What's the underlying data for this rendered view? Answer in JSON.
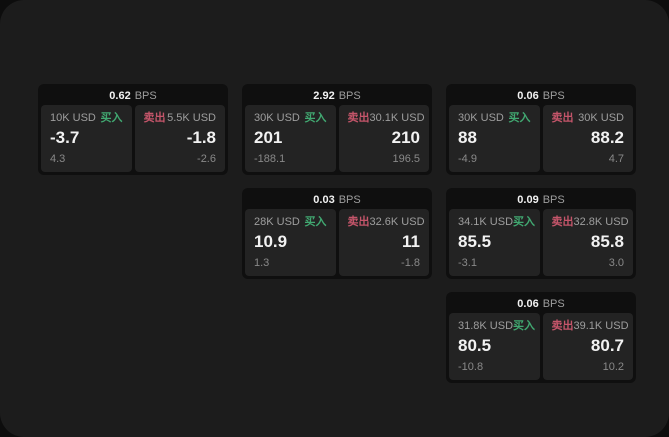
{
  "theme": {
    "page_bg": "#0d0d0d",
    "window_bg": "#1c1c1c",
    "card_bg": "#0f0f0f",
    "panel_bg": "#232323",
    "text_primary": "#f2f2f2",
    "text_secondary": "#9e9e9e",
    "text_muted": "#898989",
    "buy_color": "#41a871",
    "sell_color": "#c4556a"
  },
  "labels": {
    "bps_unit": "BPS",
    "buy": "买入",
    "sell": "卖出"
  },
  "cards": [
    {
      "bps": "0.62",
      "buy": {
        "amount": "10K USD",
        "value": "-3.7",
        "delta": "4.3"
      },
      "sell": {
        "amount": "5.5K USD",
        "value": "-1.8",
        "delta": "-2.6"
      }
    },
    {
      "bps": "2.92",
      "buy": {
        "amount": "30K USD",
        "value": "201",
        "delta": "-188.1"
      },
      "sell": {
        "amount": "30.1K USD",
        "value": "210",
        "delta": "196.5"
      }
    },
    {
      "bps": "0.06",
      "buy": {
        "amount": "30K USD",
        "value": "88",
        "delta": "-4.9"
      },
      "sell": {
        "amount": "30K USD",
        "value": "88.2",
        "delta": "4.7"
      }
    },
    {
      "bps": "0.03",
      "buy": {
        "amount": "28K USD",
        "value": "10.9",
        "delta": "1.3"
      },
      "sell": {
        "amount": "32.6K USD",
        "value": "11",
        "delta": "-1.8"
      }
    },
    {
      "bps": "0.09",
      "buy": {
        "amount": "34.1K USD",
        "value": "85.5",
        "delta": "-3.1"
      },
      "sell": {
        "amount": "32.8K USD",
        "value": "85.8",
        "delta": "3.0"
      }
    },
    {
      "bps": "0.06",
      "buy": {
        "amount": "31.8K USD",
        "value": "80.5",
        "delta": "-10.8"
      },
      "sell": {
        "amount": "39.1K USD",
        "value": "80.7",
        "delta": "10.2"
      }
    }
  ]
}
